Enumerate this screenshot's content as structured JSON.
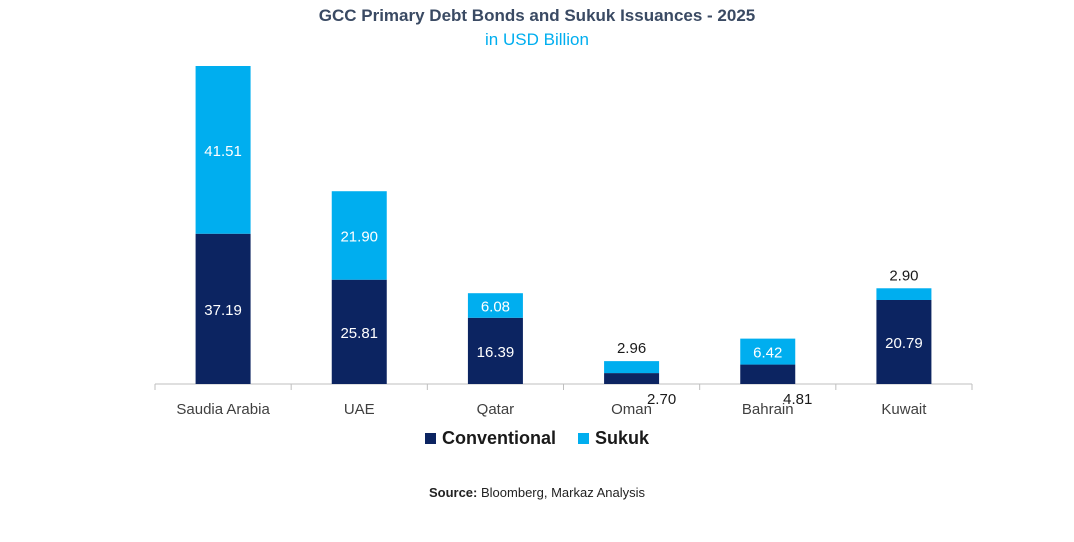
{
  "title": "GCC Primary Debt Bonds and Sukuk Issuances - 2025",
  "subtitle": "in USD Billion",
  "source": {
    "label": "Source:",
    "text": "Bloomberg, Markaz Analysis"
  },
  "colors": {
    "conventional": "#0c2461",
    "sukuk": "#00aeef"
  },
  "chart_data": {
    "type": "bar",
    "stacked": true,
    "title": "GCC Primary Debt Bonds and Sukuk Issuances - 2025",
    "subtitle": "in USD Billion",
    "categories": [
      "Saudia Arabia",
      "UAE",
      "Qatar",
      "Oman",
      "Bahrain",
      "Kuwait"
    ],
    "series": [
      {
        "name": "Conventional",
        "values": [
          37.19,
          25.81,
          16.39,
          2.7,
          4.81,
          20.79
        ],
        "labels": [
          "37.19",
          "25.81",
          "16.39",
          "2.70",
          "4.81",
          "20.79"
        ]
      },
      {
        "name": "Sukuk",
        "values": [
          41.51,
          21.9,
          6.08,
          2.96,
          6.42,
          2.9
        ],
        "labels": [
          "41.51",
          "21.90",
          "6.08",
          "2.96",
          "6.42",
          "2.90"
        ]
      }
    ],
    "ylim": [
      0,
      78.7
    ],
    "grid": false,
    "legend": "bottom"
  }
}
